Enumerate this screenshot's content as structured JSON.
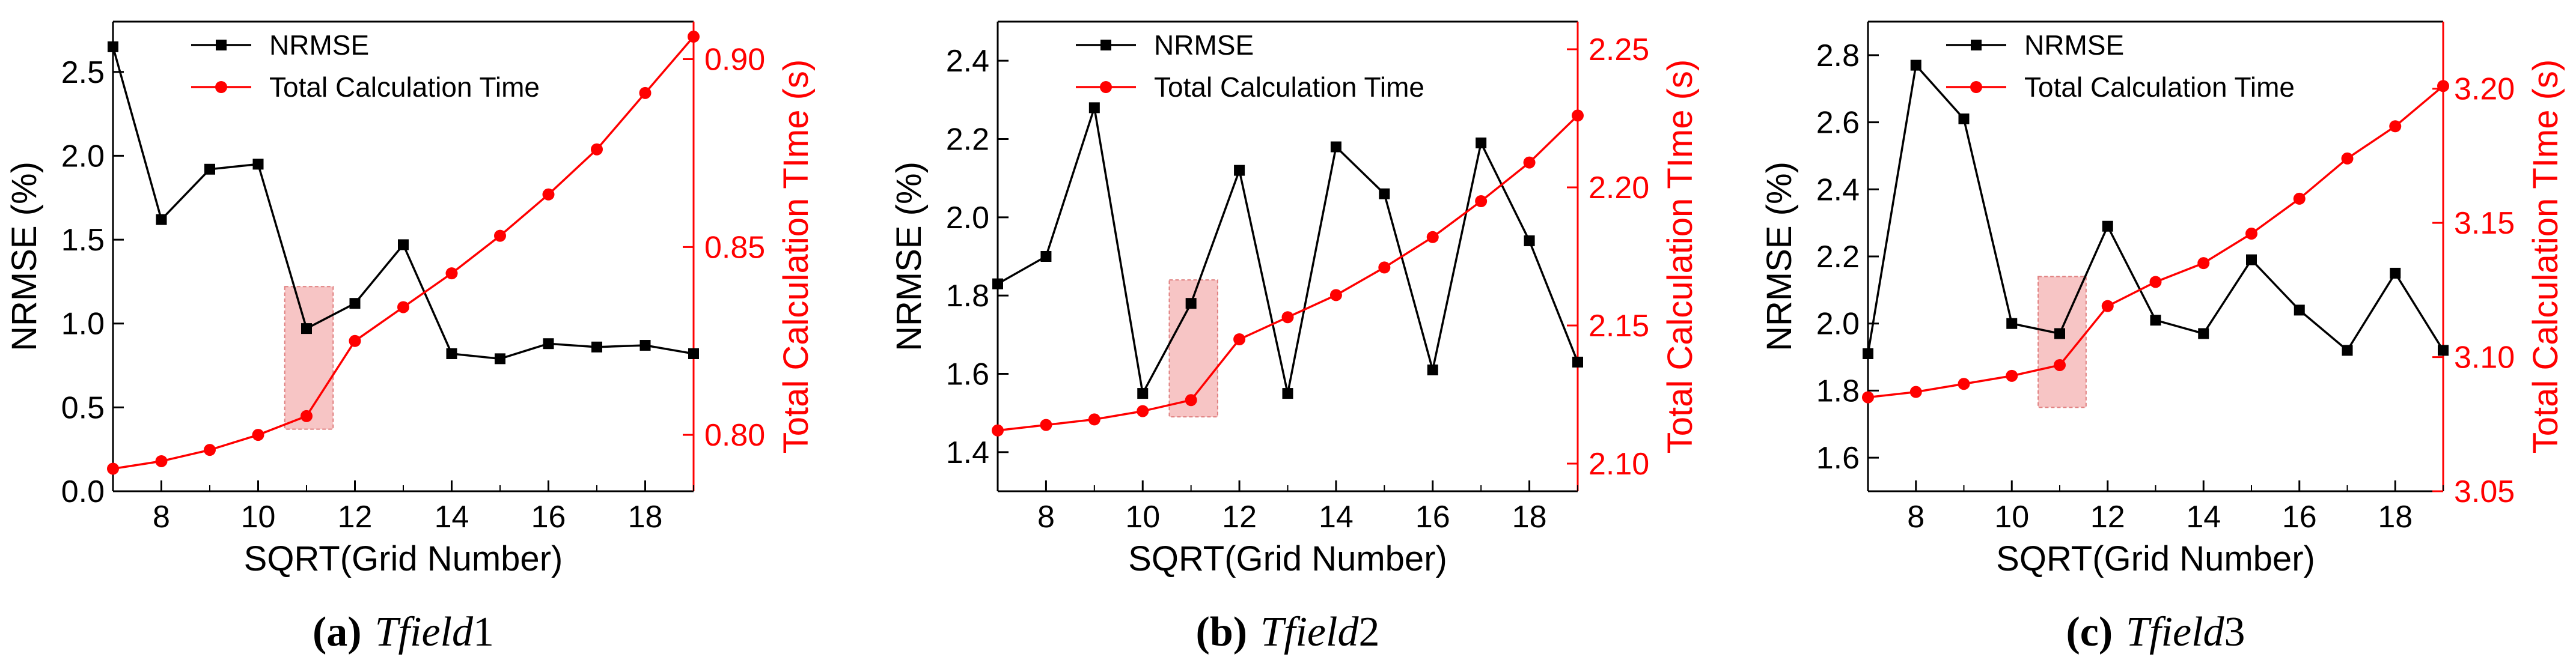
{
  "colors": {
    "nrmse": "#000000",
    "time": "#ff0000",
    "highlight_fill": "#f7c5c5",
    "highlight_stroke": "#e08080"
  },
  "chart_data": [
    {
      "type": "line",
      "caption_letter": "(a)",
      "caption_name": "Tfield",
      "caption_num": "1",
      "xlabel": "SQRT(Grid Number)",
      "ylabel_left": "NRMSE (%)",
      "ylabel_right": "Total Calculation TIme (s)",
      "xlim": [
        7,
        19
      ],
      "xticks": [
        8,
        10,
        12,
        14,
        16,
        18
      ],
      "ylim_left": [
        0,
        2.8
      ],
      "yticks_left": [
        "0.0",
        "0.5",
        "1.0",
        "1.5",
        "2.0",
        "2.5"
      ],
      "ylim_right": [
        0.785,
        0.91
      ],
      "yticks_right": [
        "0.80",
        "0.85",
        "0.90"
      ],
      "highlight_x": [
        10.55,
        11.55
      ],
      "highlight_y_left": [
        0.37,
        1.22
      ],
      "x": [
        7,
        8,
        9,
        10,
        11,
        12,
        13,
        14,
        15,
        16,
        17,
        18,
        19
      ],
      "series": [
        {
          "name": "NRMSE",
          "axis": "left",
          "marker": "square",
          "values": [
            2.65,
            1.62,
            1.92,
            1.95,
            0.97,
            1.12,
            1.47,
            0.82,
            0.79,
            0.88,
            0.86,
            0.87,
            0.82
          ]
        },
        {
          "name": "Total Calculation Time",
          "axis": "right",
          "marker": "circle",
          "values": [
            0.791,
            0.793,
            0.796,
            0.8,
            0.805,
            0.825,
            0.834,
            0.843,
            0.853,
            0.864,
            0.876,
            0.891,
            0.906
          ]
        }
      ]
    },
    {
      "type": "line",
      "caption_letter": "(b)",
      "caption_name": "Tfield",
      "caption_num": "2",
      "xlabel": "SQRT(Grid Number)",
      "ylabel_left": "NRMSE (%)",
      "ylabel_right": "Total Calculation TIme (s)",
      "xlim": [
        7,
        19
      ],
      "xticks": [
        8,
        10,
        12,
        14,
        16,
        18
      ],
      "ylim_left": [
        1.3,
        2.5
      ],
      "yticks_left": [
        "1.4",
        "1.6",
        "1.8",
        "2.0",
        "2.2",
        "2.4"
      ],
      "ylim_right": [
        2.09,
        2.26
      ],
      "yticks_right": [
        "2.10",
        "2.15",
        "2.20",
        "2.25"
      ],
      "highlight_x": [
        10.55,
        11.55
      ],
      "highlight_y_left": [
        1.49,
        1.84
      ],
      "x": [
        7,
        8,
        9,
        10,
        11,
        12,
        13,
        14,
        15,
        16,
        17,
        18,
        19
      ],
      "series": [
        {
          "name": "NRMSE",
          "axis": "left",
          "marker": "square",
          "values": [
            1.83,
            1.9,
            2.28,
            1.55,
            1.78,
            2.12,
            1.55,
            2.18,
            2.06,
            1.61,
            2.19,
            1.94,
            1.63
          ]
        },
        {
          "name": "Total Calculation Time",
          "axis": "right",
          "marker": "circle",
          "values": [
            2.112,
            2.114,
            2.116,
            2.119,
            2.123,
            2.145,
            2.153,
            2.161,
            2.171,
            2.182,
            2.195,
            2.209,
            2.226
          ]
        }
      ]
    },
    {
      "type": "line",
      "caption_letter": "(c)",
      "caption_name": "Tfield",
      "caption_num": "3",
      "xlabel": "SQRT(Grid Number)",
      "ylabel_left": "NRMSE (%)",
      "ylabel_right": "Total Calculation TIme (s)",
      "xlim": [
        7,
        19
      ],
      "xticks": [
        8,
        10,
        12,
        14,
        16,
        18
      ],
      "ylim_left": [
        1.5,
        2.9
      ],
      "yticks_left": [
        "1.6",
        "1.8",
        "2.0",
        "2.2",
        "2.4",
        "2.6",
        "2.8"
      ],
      "ylim_right": [
        3.05,
        3.225
      ],
      "yticks_right": [
        "3.05",
        "3.10",
        "3.15",
        "3.20"
      ],
      "highlight_x": [
        10.55,
        11.55
      ],
      "highlight_y_left": [
        1.75,
        2.14
      ],
      "x": [
        7,
        8,
        9,
        10,
        11,
        12,
        13,
        14,
        15,
        16,
        17,
        18,
        19
      ],
      "series": [
        {
          "name": "NRMSE",
          "axis": "left",
          "marker": "square",
          "values": [
            1.91,
            2.77,
            2.61,
            2.0,
            1.97,
            2.29,
            2.01,
            1.97,
            2.19,
            2.04,
            1.92,
            2.15,
            1.92
          ]
        },
        {
          "name": "Total Calculation Time",
          "axis": "right",
          "marker": "circle",
          "values": [
            3.085,
            3.087,
            3.09,
            3.093,
            3.097,
            3.119,
            3.128,
            3.135,
            3.146,
            3.159,
            3.174,
            3.186,
            3.201
          ]
        }
      ]
    }
  ]
}
